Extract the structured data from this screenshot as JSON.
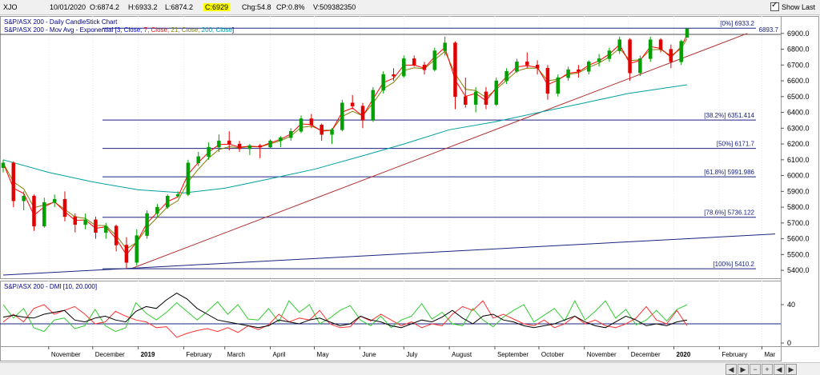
{
  "toolbar": {
    "symbol": "XJO",
    "date": "10/01/2020",
    "open": "O:6874.2",
    "high": "H:6933.2",
    "low": "L:6874.2",
    "close": "C:6929",
    "change": "Chg:54.8",
    "change_pct": "CP:0.8%",
    "volume": "V:509382350",
    "show_last": "Show Last"
  },
  "colors": {
    "candle_up": "#00a000",
    "candle_down": "#e00000",
    "ema3": "#0000ff",
    "ema7": "#ff0000",
    "ema21": "#808000",
    "ema200": "#00a0a0",
    "fib_line": "#1a237e",
    "trend_red": "#b03030",
    "trend_blue": "#1a237e",
    "di_plus": "#33cc33",
    "di_minus": "#ff3030",
    "adx": "#000000"
  },
  "chart_data": [
    {
      "type": "candlestick",
      "title": "S&P/ASX 200 - Daily CandleStick Chart",
      "legend": {
        "indicator": "S&P/ASX 200 - Mov Avg - Exponential",
        "bracket_open": "[",
        "params": [
          {
            "label": "3, Close, ",
            "color": "#0000ff"
          },
          {
            "label": "7, Close, ",
            "color": "#ff0000"
          },
          {
            "label": "21, Close, ",
            "color": "#808000"
          },
          {
            "label": "200, Close",
            "color": "#00a0a0"
          }
        ],
        "bracket_close": "]"
      },
      "y_ticks": [
        "6900.0",
        "6800.0",
        "6700.0",
        "6600.0",
        "6500.0",
        "6400.0",
        "6300.0",
        "6200.0",
        "6100.0",
        "6000.0",
        "5900.0",
        "5800.0",
        "5700.0",
        "5600.0",
        "5500.0",
        "5400.0"
      ],
      "ylim": [
        5360,
        6980
      ],
      "x_labels": [
        "November",
        "December",
        "2019",
        "February",
        "March",
        "April",
        "May",
        "June",
        "July",
        "August",
        "September",
        "October",
        "November",
        "December",
        "2020",
        "February",
        "Mar"
      ],
      "x_start": "2018-10-01",
      "x_end": "2020-03-10",
      "ohlc": [
        {
          "date": "2018-10-01",
          "open": 6050,
          "high": 6100,
          "low": 6020,
          "close": 6080
        },
        {
          "date": "2018-10-08",
          "open": 6080,
          "high": 6090,
          "low": 5800,
          "close": 5840
        },
        {
          "date": "2018-10-15",
          "open": 5840,
          "high": 5900,
          "low": 5780,
          "close": 5870
        },
        {
          "date": "2018-10-22",
          "open": 5870,
          "high": 5880,
          "low": 5650,
          "close": 5680
        },
        {
          "date": "2018-10-29",
          "open": 5680,
          "high": 5860,
          "low": 5670,
          "close": 5830
        },
        {
          "date": "2018-11-05",
          "open": 5830,
          "high": 5880,
          "low": 5800,
          "close": 5850
        },
        {
          "date": "2018-11-12",
          "open": 5850,
          "high": 5900,
          "low": 5710,
          "close": 5740
        },
        {
          "date": "2018-11-19",
          "open": 5740,
          "high": 5760,
          "low": 5640,
          "close": 5690
        },
        {
          "date": "2018-11-26",
          "open": 5690,
          "high": 5760,
          "low": 5660,
          "close": 5720
        },
        {
          "date": "2018-12-03",
          "open": 5720,
          "high": 5740,
          "low": 5600,
          "close": 5640
        },
        {
          "date": "2018-12-10",
          "open": 5640,
          "high": 5700,
          "low": 5600,
          "close": 5680
        },
        {
          "date": "2018-12-17",
          "open": 5680,
          "high": 5690,
          "low": 5520,
          "close": 5560
        },
        {
          "date": "2018-12-24",
          "open": 5560,
          "high": 5610,
          "low": 5410,
          "close": 5450
        },
        {
          "date": "2018-12-31",
          "open": 5450,
          "high": 5660,
          "low": 5430,
          "close": 5620
        },
        {
          "date": "2019-01-07",
          "open": 5620,
          "high": 5780,
          "low": 5600,
          "close": 5760
        },
        {
          "date": "2019-01-14",
          "open": 5760,
          "high": 5820,
          "low": 5740,
          "close": 5800
        },
        {
          "date": "2019-01-21",
          "open": 5800,
          "high": 5880,
          "low": 5790,
          "close": 5870
        },
        {
          "date": "2019-01-28",
          "open": 5870,
          "high": 5900,
          "low": 5860,
          "close": 5880
        },
        {
          "date": "2019-02-04",
          "open": 5880,
          "high": 6100,
          "low": 5870,
          "close": 6080
        },
        {
          "date": "2019-02-11",
          "open": 6080,
          "high": 6150,
          "low": 6060,
          "close": 6120
        },
        {
          "date": "2019-02-18",
          "open": 6120,
          "high": 6210,
          "low": 6100,
          "close": 6180
        },
        {
          "date": "2019-02-25",
          "open": 6180,
          "high": 6260,
          "low": 6150,
          "close": 6220
        },
        {
          "date": "2019-03-04",
          "open": 6220,
          "high": 6280,
          "low": 6160,
          "close": 6200
        },
        {
          "date": "2019-03-11",
          "open": 6200,
          "high": 6220,
          "low": 6150,
          "close": 6170
        },
        {
          "date": "2019-03-18",
          "open": 6170,
          "high": 6200,
          "low": 6130,
          "close": 6190
        },
        {
          "date": "2019-03-25",
          "open": 6190,
          "high": 6200,
          "low": 6110,
          "close": 6180
        },
        {
          "date": "2019-04-01",
          "open": 6180,
          "high": 6230,
          "low": 6170,
          "close": 6220
        },
        {
          "date": "2019-04-08",
          "open": 6220,
          "high": 6250,
          "low": 6180,
          "close": 6240
        },
        {
          "date": "2019-04-15",
          "open": 6240,
          "high": 6300,
          "low": 6220,
          "close": 6280
        },
        {
          "date": "2019-04-22",
          "open": 6280,
          "high": 6380,
          "low": 6270,
          "close": 6360
        },
        {
          "date": "2019-04-29",
          "open": 6360,
          "high": 6390,
          "low": 6300,
          "close": 6320
        },
        {
          "date": "2019-05-06",
          "open": 6320,
          "high": 6330,
          "low": 6220,
          "close": 6260
        },
        {
          "date": "2019-05-13",
          "open": 6260,
          "high": 6300,
          "low": 6200,
          "close": 6290
        },
        {
          "date": "2019-05-20",
          "open": 6290,
          "high": 6480,
          "low": 6280,
          "close": 6460
        },
        {
          "date": "2019-05-27",
          "open": 6460,
          "high": 6510,
          "low": 6420,
          "close": 6440
        },
        {
          "date": "2019-06-03",
          "open": 6440,
          "high": 6460,
          "low": 6300,
          "close": 6350
        },
        {
          "date": "2019-06-10",
          "open": 6350,
          "high": 6560,
          "low": 6340,
          "close": 6540
        },
        {
          "date": "2019-06-17",
          "open": 6540,
          "high": 6660,
          "low": 6520,
          "close": 6640
        },
        {
          "date": "2019-06-24",
          "open": 6640,
          "high": 6680,
          "low": 6600,
          "close": 6630
        },
        {
          "date": "2019-07-01",
          "open": 6630,
          "high": 6760,
          "low": 6620,
          "close": 6740
        },
        {
          "date": "2019-07-08",
          "open": 6740,
          "high": 6760,
          "low": 6690,
          "close": 6700
        },
        {
          "date": "2019-07-15",
          "open": 6700,
          "high": 6720,
          "low": 6640,
          "close": 6670
        },
        {
          "date": "2019-07-22",
          "open": 6670,
          "high": 6810,
          "low": 6660,
          "close": 6790
        },
        {
          "date": "2019-07-29",
          "open": 6790,
          "high": 6880,
          "low": 6760,
          "close": 6840
        },
        {
          "date": "2019-08-05",
          "open": 6840,
          "high": 6850,
          "low": 6420,
          "close": 6500
        },
        {
          "date": "2019-08-12",
          "open": 6500,
          "high": 6620,
          "low": 6430,
          "close": 6450
        },
        {
          "date": "2019-08-19",
          "open": 6450,
          "high": 6560,
          "low": 6400,
          "close": 6530
        },
        {
          "date": "2019-08-26",
          "open": 6530,
          "high": 6560,
          "low": 6420,
          "close": 6450
        },
        {
          "date": "2019-09-02",
          "open": 6450,
          "high": 6620,
          "low": 6440,
          "close": 6600
        },
        {
          "date": "2019-09-09",
          "open": 6600,
          "high": 6680,
          "low": 6580,
          "close": 6660
        },
        {
          "date": "2019-09-16",
          "open": 6660,
          "high": 6740,
          "low": 6650,
          "close": 6720
        },
        {
          "date": "2019-09-23",
          "open": 6720,
          "high": 6780,
          "low": 6680,
          "close": 6700
        },
        {
          "date": "2019-09-30",
          "open": 6700,
          "high": 6730,
          "low": 6640,
          "close": 6680
        },
        {
          "date": "2019-10-07",
          "open": 6680,
          "high": 6700,
          "low": 6480,
          "close": 6520
        },
        {
          "date": "2019-10-14",
          "open": 6520,
          "high": 6640,
          "low": 6500,
          "close": 6620
        },
        {
          "date": "2019-10-21",
          "open": 6620,
          "high": 6690,
          "low": 6600,
          "close": 6670
        },
        {
          "date": "2019-10-28",
          "open": 6670,
          "high": 6700,
          "low": 6620,
          "close": 6660
        },
        {
          "date": "2019-11-04",
          "open": 6660,
          "high": 6730,
          "low": 6640,
          "close": 6720
        },
        {
          "date": "2019-11-11",
          "open": 6720,
          "high": 6770,
          "low": 6690,
          "close": 6740
        },
        {
          "date": "2019-11-18",
          "open": 6740,
          "high": 6810,
          "low": 6720,
          "close": 6790
        },
        {
          "date": "2019-11-25",
          "open": 6790,
          "high": 6880,
          "low": 6770,
          "close": 6860
        },
        {
          "date": "2019-12-02",
          "open": 6860,
          "high": 6870,
          "low": 6600,
          "close": 6650
        },
        {
          "date": "2019-12-09",
          "open": 6650,
          "high": 6760,
          "low": 6630,
          "close": 6740
        },
        {
          "date": "2019-12-16",
          "open": 6740,
          "high": 6880,
          "low": 6720,
          "close": 6860
        },
        {
          "date": "2019-12-23",
          "open": 6860,
          "high": 6870,
          "low": 6780,
          "close": 6800
        },
        {
          "date": "2019-12-30",
          "open": 6800,
          "high": 6830,
          "low": 6680,
          "close": 6720
        },
        {
          "date": "2020-01-06",
          "open": 6720,
          "high": 6860,
          "low": 6700,
          "close": 6850
        },
        {
          "date": "2020-01-10",
          "open": 6874.2,
          "high": 6933.2,
          "low": 6874.2,
          "close": 6929
        }
      ],
      "ema200": [
        {
          "date": "2018-10-01",
          "value": 6100
        },
        {
          "date": "2018-11-01",
          "value": 6020
        },
        {
          "date": "2018-12-01",
          "value": 5960
        },
        {
          "date": "2019-01-01",
          "value": 5910
        },
        {
          "date": "2019-02-01",
          "value": 5890
        },
        {
          "date": "2019-03-01",
          "value": 5920
        },
        {
          "date": "2019-04-01",
          "value": 5980
        },
        {
          "date": "2019-05-01",
          "value": 6040
        },
        {
          "date": "2019-06-01",
          "value": 6120
        },
        {
          "date": "2019-07-01",
          "value": 6200
        },
        {
          "date": "2019-08-01",
          "value": 6290
        },
        {
          "date": "2019-09-01",
          "value": 6340
        },
        {
          "date": "2019-10-01",
          "value": 6400
        },
        {
          "date": "2019-11-01",
          "value": 6460
        },
        {
          "date": "2019-12-01",
          "value": 6520
        },
        {
          "date": "2020-01-10",
          "value": 6575
        }
      ],
      "fib_levels": [
        {
          "pct": "[0%]",
          "value": 6933.2,
          "label": "6933.2"
        },
        {
          "pct": "[38.2%]",
          "value": 6351.414,
          "label": "6351.414"
        },
        {
          "pct": "[50%]",
          "value": 6171.7,
          "label": "6171.7"
        },
        {
          "pct": "[61.8%]",
          "value": 5991.986,
          "label": "5991.986"
        },
        {
          "pct": "[78.6%]",
          "value": 5736.122,
          "label": "5736.122"
        },
        {
          "pct": "[100%]",
          "value": 5410.2,
          "label": "5410.2"
        }
      ],
      "hline": {
        "value": 6893.7,
        "label": "6893.7"
      },
      "trendlines": [
        {
          "color": "red",
          "from": {
            "date": "2018-12-27",
            "value": 5410
          },
          "to": {
            "date": "2020-02-20",
            "value": 6900
          }
        },
        {
          "color": "blue",
          "from": {
            "date": "2018-10-01",
            "value": 5370
          },
          "to": {
            "date": "2020-03-10",
            "value": 5630
          }
        }
      ]
    },
    {
      "type": "line",
      "title": "S&P/ASX 200 - DMI [10, 20.000]",
      "y_ticks": [
        "40",
        "0"
      ],
      "ylim": [
        0,
        60
      ],
      "hline": 20,
      "series": [
        {
          "color": "green",
          "values": [
            40,
            26,
            36,
            16,
            12,
            24,
            26,
            15,
            18,
            35,
            18,
            12,
            16,
            42,
            31,
            24,
            32,
            42,
            33,
            24,
            33,
            43,
            30,
            40,
            25,
            24,
            36,
            22,
            44,
            32,
            40,
            20,
            26,
            34,
            39,
            24,
            18,
            28,
            16,
            24,
            28,
            41,
            25,
            32,
            20,
            18,
            36,
            24,
            17,
            27,
            34,
            40,
            22,
            29,
            36,
            23,
            44,
            24,
            33,
            44,
            26,
            35,
            19,
            24,
            34,
            23,
            35,
            40
          ]
        },
        {
          "color": "red",
          "values": [
            22,
            30,
            22,
            36,
            40,
            30,
            34,
            38,
            30,
            20,
            22,
            33,
            28,
            24,
            22,
            16,
            17,
            6,
            10,
            13,
            15,
            12,
            16,
            11,
            18,
            14,
            19,
            30,
            22,
            26,
            24,
            34,
            20,
            16,
            17,
            28,
            23,
            30,
            24,
            18,
            22,
            16,
            20,
            18,
            30,
            38,
            34,
            44,
            26,
            30,
            25,
            20,
            18,
            24,
            16,
            20,
            28,
            20,
            24,
            18,
            16,
            20,
            26,
            38,
            24,
            20,
            34,
            18
          ]
        },
        {
          "color": "black",
          "values": [
            27,
            29,
            27,
            26,
            30,
            32,
            34,
            24,
            22,
            26,
            28,
            24,
            22,
            33,
            38,
            36,
            45,
            52,
            46,
            36,
            30,
            24,
            22,
            20,
            18,
            16,
            18,
            24,
            22,
            20,
            24,
            26,
            22,
            18,
            20,
            28,
            24,
            22,
            18,
            16,
            20,
            24,
            22,
            27,
            34,
            26,
            20,
            28,
            30,
            24,
            22,
            18,
            16,
            18,
            20,
            24,
            28,
            22,
            18,
            16,
            22,
            28,
            24,
            18,
            20,
            18,
            22,
            24
          ]
        }
      ]
    }
  ],
  "bottom_nav": {
    "buttons": [
      "◀",
      "▶",
      "−",
      "+",
      "◀",
      "▶"
    ]
  }
}
